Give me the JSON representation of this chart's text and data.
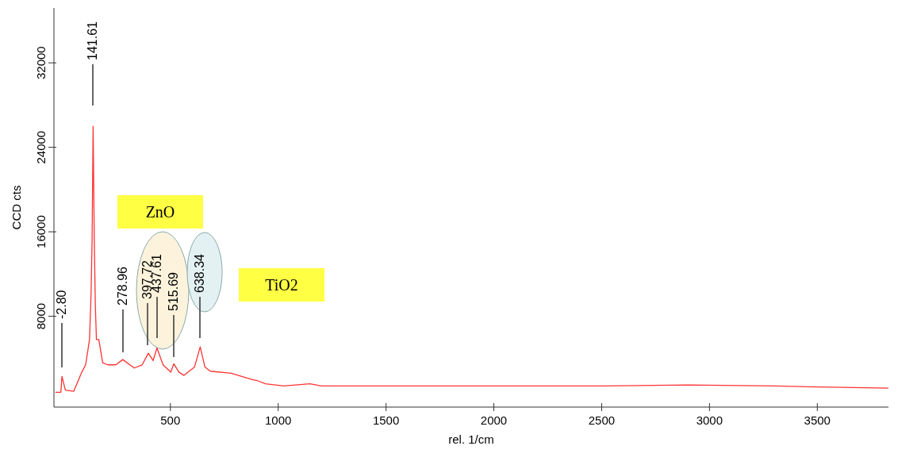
{
  "chart_data": {
    "type": "line",
    "xlabel": "rel. 1/cm",
    "ylabel": "CCD cts",
    "xlim": [
      -40,
      3830
    ],
    "ylim": [
      -600,
      37200
    ],
    "xticks": [
      500,
      1000,
      1500,
      2000,
      2500,
      3000,
      3500
    ],
    "yticks": [
      8000,
      16000,
      24000,
      32000
    ],
    "grid": false,
    "series": [
      {
        "color": "#ff3333",
        "x": [
          -33,
          -8,
          -2.8,
          13,
          52,
          89,
          107,
          125,
          132,
          137,
          141.61,
          147,
          152,
          157,
          168,
          186,
          210,
          247,
          278.96,
          332,
          369,
          397.72,
          420,
          437.61,
          466,
          502,
          515.69,
          540,
          563,
          612,
          638.34,
          660,
          685,
          782,
          880,
          904,
          940,
          1025,
          1147,
          1200,
          1500,
          2000,
          2500,
          2900,
          3300,
          3500,
          3830
        ],
        "values": [
          800,
          800,
          2300,
          1000,
          900,
          2700,
          3400,
          5800,
          10000,
          15300,
          26000,
          15300,
          9000,
          5800,
          5800,
          3600,
          3400,
          3400,
          3900,
          3100,
          3400,
          4500,
          3800,
          5000,
          3400,
          2700,
          3500,
          2700,
          2400,
          3200,
          5100,
          3200,
          2800,
          2600,
          2000,
          1900,
          1600,
          1400,
          1600,
          1400,
          1400,
          1400,
          1400,
          1500,
          1400,
          1300,
          1200
        ]
      }
    ],
    "annotations": [
      "-2.80",
      "141.61",
      "278.96",
      "397.72",
      "437.61",
      "515.69",
      "638.34",
      "ZnO",
      "TiO2"
    ]
  }
}
